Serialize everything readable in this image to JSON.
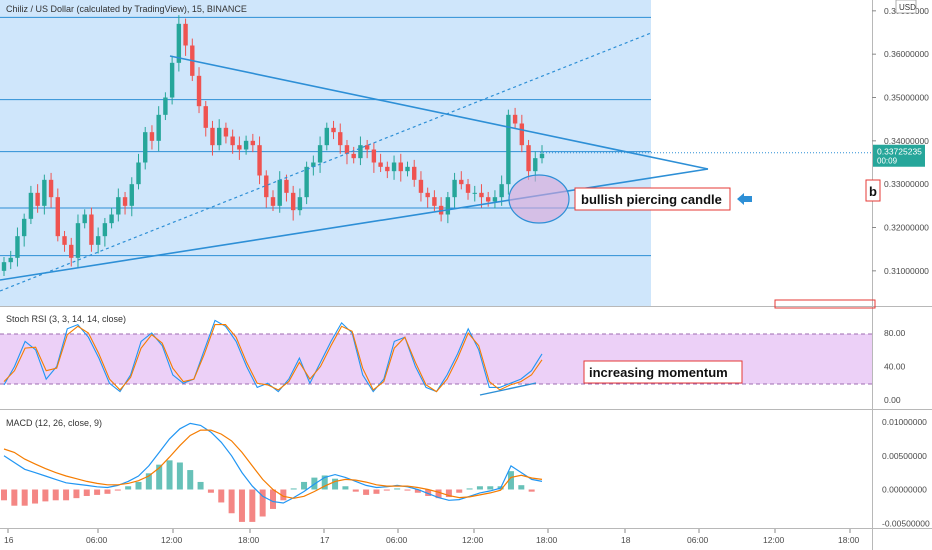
{
  "symbol_title": "Chiliz / US Dollar (calculated by TradingView), 15, BINANCE",
  "currency": "USD",
  "indicators": {
    "stoch_title": "Stoch RSI (3, 3, 14, 14, close)",
    "macd_title": "MACD (12, 26, close, 9)"
  },
  "annotations": {
    "candle_note": "bullish piercing candle",
    "momentum_note": "increasing momentum",
    "edge_note": "b"
  },
  "price_tag": {
    "price": "0.33725235",
    "countdown": "00:09"
  },
  "colors": {
    "up": "#26a69a",
    "down": "#ef5350",
    "highlight": "#cfe6fb",
    "trendline": "#2d8fd6",
    "rsi_band": "#ecd0f7",
    "k_line": "#2196f3",
    "d_line": "#f57c00"
  },
  "chart_data": [
    {
      "type": "candlestick",
      "title": "Chiliz / US Dollar (calculated by TradingView), 15, BINANCE",
      "y_ticks": [
        "0.37000000",
        "0.36000000",
        "0.35000000",
        "0.34000000",
        "0.33000000",
        "0.32000000",
        "0.31000000"
      ],
      "ylim": [
        0.3035,
        0.3725
      ],
      "x_ticks": [
        "16",
        "06:00",
        "12:00",
        "18:00",
        "17",
        "06:00",
        "12:00",
        "18:00",
        "18",
        "06:00",
        "12:00",
        "18:00"
      ],
      "current_price": 0.33725235,
      "horizontal_levels": [
        0.3685,
        0.3495,
        0.3375,
        0.3245,
        0.3135
      ],
      "close_series": [
        0.312,
        0.313,
        0.318,
        0.322,
        0.328,
        0.325,
        0.331,
        0.327,
        0.318,
        0.316,
        0.313,
        0.321,
        0.323,
        0.316,
        0.318,
        0.321,
        0.323,
        0.327,
        0.325,
        0.33,
        0.335,
        0.342,
        0.34,
        0.346,
        0.35,
        0.358,
        0.367,
        0.362,
        0.355,
        0.348,
        0.343,
        0.339,
        0.343,
        0.341,
        0.339,
        0.338,
        0.34,
        0.339,
        0.332,
        0.327,
        0.325,
        0.331,
        0.328,
        0.324,
        0.327,
        0.334,
        0.335,
        0.339,
        0.343,
        0.342,
        0.339,
        0.337,
        0.336,
        0.339,
        0.338,
        0.335,
        0.334,
        0.333,
        0.335,
        0.333,
        0.334,
        0.331,
        0.328,
        0.327,
        0.325,
        0.323,
        0.327,
        0.331,
        0.33,
        0.328,
        0.328,
        0.327,
        0.326,
        0.327,
        0.33,
        0.346,
        0.344,
        0.339,
        0.333,
        0.336,
        0.337
      ]
    },
    {
      "type": "line",
      "title": "Stoch RSI (3, 3, 14, 14, close)",
      "y_ticks": [
        "80.00",
        "40.00",
        "0.00"
      ],
      "ylim": [
        -10,
        100
      ],
      "band": [
        20,
        80
      ],
      "series": [
        {
          "name": "K",
          "values": [
            18,
            40,
            70,
            60,
            25,
            40,
            85,
            90,
            75,
            50,
            20,
            10,
            30,
            70,
            80,
            65,
            30,
            20,
            25,
            60,
            95,
            88,
            70,
            40,
            15,
            20,
            10,
            25,
            50,
            20,
            45,
            70,
            92,
            80,
            30,
            10,
            25,
            70,
            75,
            40,
            15,
            10,
            30,
            55,
            85,
            60,
            15,
            15,
            20,
            25,
            35,
            55
          ]
        },
        {
          "name": "D",
          "values": [
            22,
            35,
            62,
            63,
            35,
            38,
            78,
            88,
            80,
            55,
            25,
            12,
            27,
            62,
            78,
            68,
            38,
            22,
            25,
            55,
            90,
            90,
            75,
            45,
            20,
            18,
            12,
            22,
            45,
            25,
            40,
            65,
            88,
            82,
            38,
            12,
            22,
            62,
            75,
            45,
            18,
            10,
            25,
            50,
            80,
            65,
            22,
            12,
            18,
            22,
            30,
            48
          ]
        }
      ]
    },
    {
      "type": "line",
      "title": "MACD (12, 26, close, 9)",
      "y_ticks": [
        "0.01000000",
        "0.00500000",
        "0.00000000",
        "-0.00500000"
      ],
      "ylim": [
        -0.0055,
        0.0108
      ],
      "series": [
        {
          "name": "MACD",
          "values": [
            0.005,
            0.004,
            0.003,
            0.0025,
            0.002,
            0.0015,
            0.001,
            0.0008,
            0.0006,
            0.0004,
            0.0003,
            0.0006,
            0.0012,
            0.002,
            0.0035,
            0.0055,
            0.0075,
            0.009,
            0.0098,
            0.0095,
            0.0085,
            0.007,
            0.005,
            0.0025,
            0.0005,
            -0.001,
            -0.0018,
            -0.002,
            -0.0012,
            -0.0003,
            0.0008,
            0.0018,
            0.0022,
            0.0018,
            0.0012,
            0.0006,
            0.0003,
            0.0004,
            0.0006,
            0.0004,
            0.0,
            -0.0006,
            -0.0012,
            -0.0016,
            -0.0015,
            -0.001,
            -0.0005,
            -0.0002,
            0.0002,
            0.0035,
            0.0025,
            0.0015,
            0.0012
          ]
        },
        {
          "name": "Signal",
          "values": [
            0.006,
            0.0055,
            0.0045,
            0.0038,
            0.0031,
            0.0025,
            0.002,
            0.0016,
            0.0012,
            0.0009,
            0.0007,
            0.0007,
            0.0009,
            0.0013,
            0.002,
            0.0032,
            0.0048,
            0.0065,
            0.008,
            0.0088,
            0.0088,
            0.0082,
            0.0072,
            0.0055,
            0.0035,
            0.0015,
            0.0,
            -0.001,
            -0.0013,
            -0.001,
            -0.0003,
            0.0005,
            0.0012,
            0.0015,
            0.0014,
            0.0011,
            0.0007,
            0.0005,
            0.0005,
            0.0005,
            0.0003,
            0.0,
            -0.0004,
            -0.0009,
            -0.0012,
            -0.0011,
            -0.0008,
            -0.0005,
            -0.0001,
            0.0018,
            0.0021,
            0.0017,
            0.0015
          ]
        }
      ]
    }
  ]
}
